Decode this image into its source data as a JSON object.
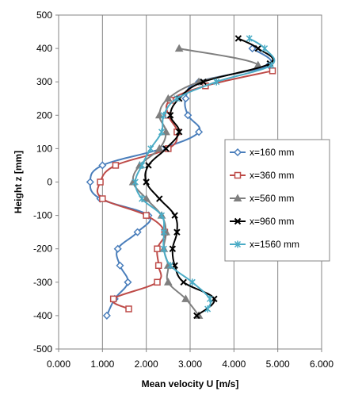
{
  "chart_data": {
    "type": "line",
    "xlabel": "Mean velocity U [m/s]",
    "ylabel": "Height z [mm]",
    "xlim": [
      0,
      6
    ],
    "ylim": [
      -500,
      500
    ],
    "x_ticks": [
      "0.000",
      "1.000",
      "2.000",
      "3.000",
      "4.000",
      "5.000",
      "6.000"
    ],
    "y_ticks": [
      "-500",
      "-400",
      "-300",
      "-200",
      "-100",
      "0",
      "100",
      "200",
      "300",
      "400",
      "500"
    ],
    "grid": "x-major",
    "legend_position": "right",
    "series": [
      {
        "name": "x=160 mm",
        "color": "#4a7ebb",
        "marker": "diamond",
        "points": [
          [
            4.42,
            400
          ],
          [
            4.8,
            350
          ],
          [
            3.2,
            300
          ],
          [
            2.9,
            250
          ],
          [
            2.95,
            200
          ],
          [
            3.2,
            150
          ],
          [
            2.35,
            100
          ],
          [
            1.0,
            50
          ],
          [
            0.72,
            0
          ],
          [
            0.95,
            -50
          ],
          [
            2.05,
            -100
          ],
          [
            1.8,
            -150
          ],
          [
            1.35,
            -200
          ],
          [
            1.4,
            -250
          ],
          [
            1.58,
            -300
          ],
          [
            1.28,
            -350
          ],
          [
            1.1,
            -400
          ]
        ]
      },
      {
        "name": "x=360 mm",
        "color": "#be4b48",
        "marker": "square",
        "points": [
          [
            4.88,
            333
          ],
          [
            3.35,
            288
          ],
          [
            2.55,
            245
          ],
          [
            2.5,
            200
          ],
          [
            2.7,
            150
          ],
          [
            2.5,
            100
          ],
          [
            1.3,
            50
          ],
          [
            0.95,
            0
          ],
          [
            1.0,
            -50
          ],
          [
            2.0,
            -100
          ],
          [
            2.42,
            -150
          ],
          [
            2.25,
            -200
          ],
          [
            2.28,
            -250
          ],
          [
            2.25,
            -300
          ],
          [
            1.25,
            -350
          ],
          [
            1.6,
            -380
          ]
        ]
      },
      {
        "name": "x=560 mm",
        "color": "#7f7f7f",
        "marker": "triangle",
        "points": [
          [
            2.75,
            400
          ],
          [
            4.55,
            350
          ],
          [
            3.2,
            300
          ],
          [
            2.5,
            250
          ],
          [
            2.3,
            200
          ],
          [
            2.45,
            150
          ],
          [
            2.3,
            100
          ],
          [
            1.85,
            50
          ],
          [
            1.7,
            0
          ],
          [
            2.0,
            -50
          ],
          [
            2.35,
            -100
          ],
          [
            2.45,
            -150
          ],
          [
            2.4,
            -200
          ],
          [
            2.5,
            -250
          ],
          [
            2.5,
            -300
          ],
          [
            2.9,
            -350
          ],
          [
            3.2,
            -400
          ]
        ]
      },
      {
        "name": "x=960 mm",
        "color": "#000000",
        "marker": "x",
        "points": [
          [
            4.1,
            430
          ],
          [
            4.55,
            400
          ],
          [
            4.82,
            355
          ],
          [
            3.3,
            300
          ],
          [
            2.75,
            250
          ],
          [
            2.55,
            200
          ],
          [
            2.75,
            150
          ],
          [
            2.45,
            100
          ],
          [
            2.05,
            50
          ],
          [
            2.0,
            0
          ],
          [
            2.3,
            -50
          ],
          [
            2.65,
            -100
          ],
          [
            2.7,
            -150
          ],
          [
            2.6,
            -200
          ],
          [
            2.65,
            -250
          ],
          [
            2.85,
            -300
          ],
          [
            3.55,
            -350
          ],
          [
            3.15,
            -400
          ]
        ]
      },
      {
        "name": "x=1560 mm",
        "color": "#4bacc6",
        "marker": "asterisk",
        "points": [
          [
            4.35,
            430
          ],
          [
            4.7,
            400
          ],
          [
            4.85,
            350
          ],
          [
            3.6,
            300
          ],
          [
            2.7,
            250
          ],
          [
            2.4,
            200
          ],
          [
            2.35,
            150
          ],
          [
            2.1,
            100
          ],
          [
            1.9,
            50
          ],
          [
            1.75,
            0
          ],
          [
            1.9,
            -50
          ],
          [
            2.35,
            -100
          ],
          [
            2.4,
            -150
          ],
          [
            2.4,
            -200
          ],
          [
            2.55,
            -250
          ],
          [
            3.05,
            -300
          ],
          [
            3.45,
            -350
          ],
          [
            3.4,
            -380
          ]
        ]
      }
    ]
  }
}
